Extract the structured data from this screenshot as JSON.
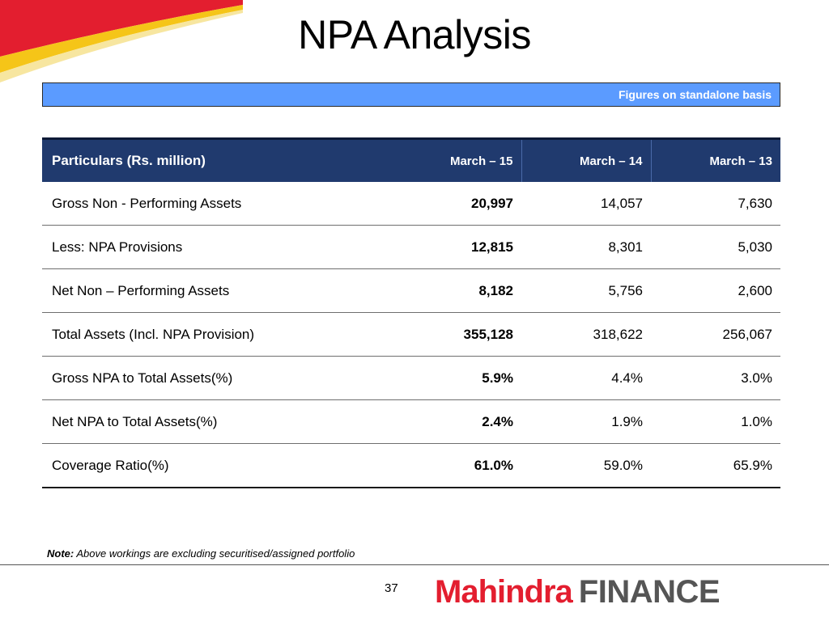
{
  "title": "NPA Analysis",
  "banner_text": "Figures on standalone basis",
  "table": {
    "headers": [
      "Particulars (Rs. million)",
      "March – 15",
      "March – 14",
      "March – 13"
    ],
    "rows": [
      [
        "Gross Non - Performing Assets",
        "20,997",
        "14,057",
        "7,630"
      ],
      [
        "Less: NPA Provisions",
        "12,815",
        "8,301",
        "5,030"
      ],
      [
        "Net Non – Performing Assets",
        "8,182",
        "5,756",
        "2,600"
      ],
      [
        "Total Assets (Incl. NPA Provision)",
        "355,128",
        "318,622",
        "256,067"
      ],
      [
        "Gross NPA to Total Assets(%)",
        "5.9%",
        "4.4%",
        "3.0%"
      ],
      [
        "Net NPA to Total Assets(%)",
        "2.4%",
        "1.9%",
        "1.0%"
      ],
      [
        "Coverage Ratio(%)",
        "61.0%",
        "59.0%",
        "65.9%"
      ]
    ]
  },
  "note": {
    "label": "Note:",
    "text": " Above workings are excluding securitised/assigned portfolio"
  },
  "page_number": "37",
  "logo": {
    "brand": "Mahindra",
    "sub": "FINANCE"
  },
  "colors": {
    "accent_red": "#e31e2f",
    "header_navy": "#203a6e",
    "banner_blue": "#5b9bff"
  }
}
